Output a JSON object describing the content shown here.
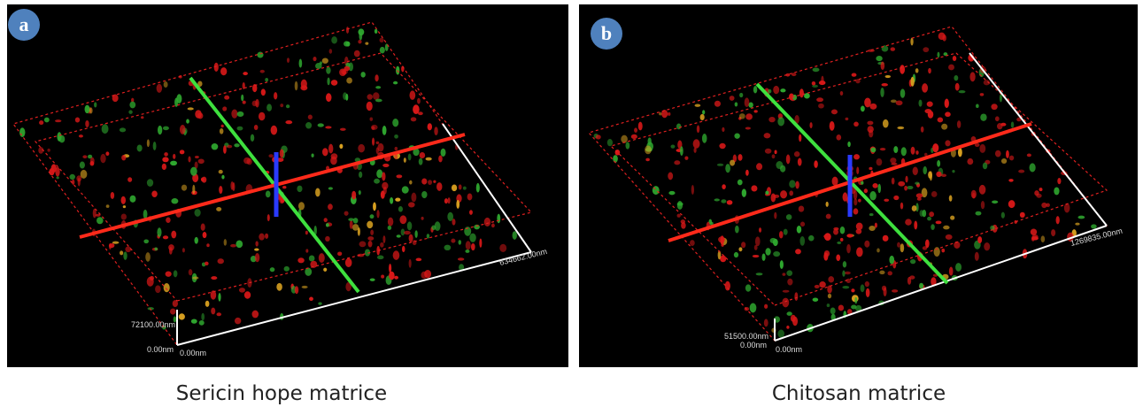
{
  "panels": [
    {
      "label": "a",
      "caption": "Sericin hope matrice",
      "axis_labels": [
        "634662.00nm",
        "72100.00nm",
        "0.00nm",
        "0.00nm"
      ]
    },
    {
      "label": "b",
      "caption": "Chitosan matrice",
      "axis_labels": [
        "1269835.00nm",
        "51500.00nm",
        "0.00nm",
        "0.00nm"
      ]
    }
  ]
}
